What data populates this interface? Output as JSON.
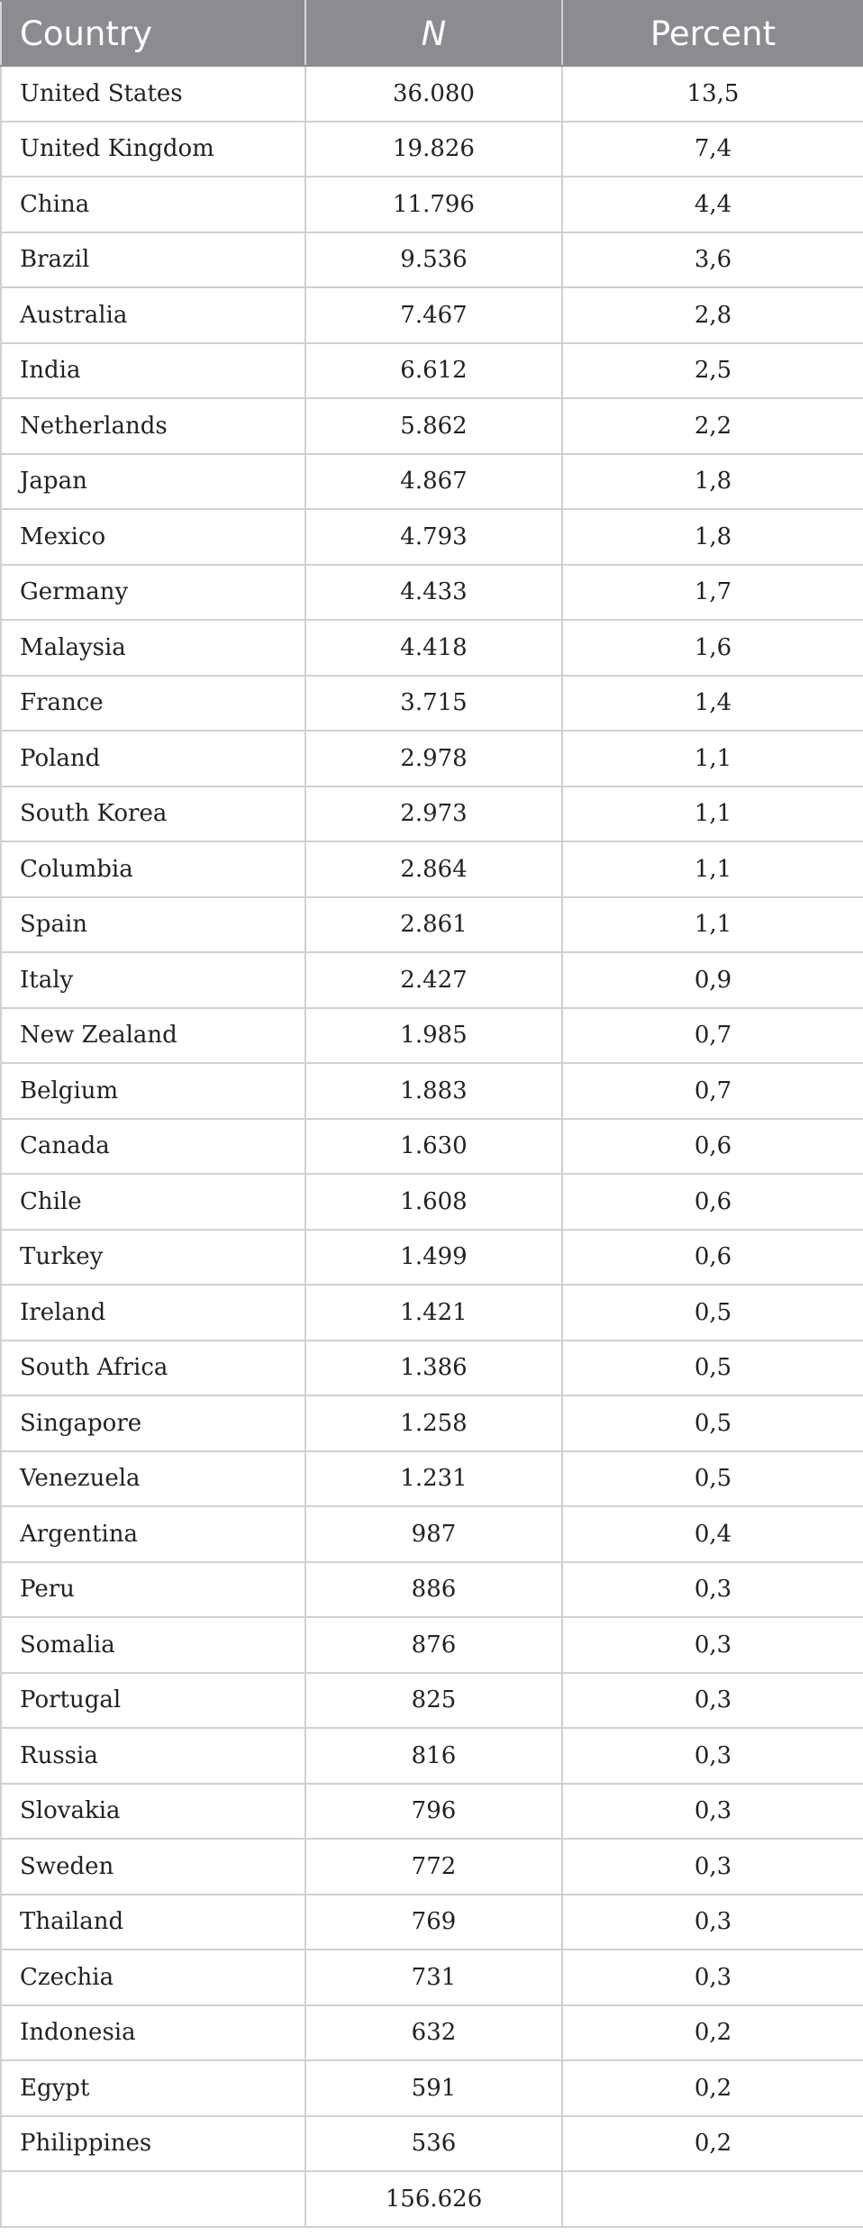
{
  "header": {
    "country": "Country",
    "n": "N",
    "percent": "Percent"
  },
  "rows": [
    {
      "country": "United States",
      "n": "36.080",
      "percent": "13,5"
    },
    {
      "country": "United Kingdom",
      "n": "19.826",
      "percent": "7,4"
    },
    {
      "country": "China",
      "n": "11.796",
      "percent": "4,4"
    },
    {
      "country": "Brazil",
      "n": "9.536",
      "percent": "3,6"
    },
    {
      "country": "Australia",
      "n": "7.467",
      "percent": "2,8"
    },
    {
      "country": "India",
      "n": "6.612",
      "percent": "2,5"
    },
    {
      "country": "Netherlands",
      "n": "5.862",
      "percent": "2,2"
    },
    {
      "country": "Japan",
      "n": "4.867",
      "percent": "1,8"
    },
    {
      "country": "Mexico",
      "n": "4.793",
      "percent": "1,8"
    },
    {
      "country": "Germany",
      "n": "4.433",
      "percent": "1,7"
    },
    {
      "country": "Malaysia",
      "n": "4.418",
      "percent": "1,6"
    },
    {
      "country": "France",
      "n": "3.715",
      "percent": "1,4"
    },
    {
      "country": "Poland",
      "n": "2.978",
      "percent": "1,1"
    },
    {
      "country": "South Korea",
      "n": "2.973",
      "percent": "1,1"
    },
    {
      "country": "Columbia",
      "n": "2.864",
      "percent": "1,1"
    },
    {
      "country": "Spain",
      "n": "2.861",
      "percent": "1,1"
    },
    {
      "country": "Italy",
      "n": "2.427",
      "percent": "0,9"
    },
    {
      "country": "New Zealand",
      "n": "1.985",
      "percent": "0,7"
    },
    {
      "country": "Belgium",
      "n": "1.883",
      "percent": "0,7"
    },
    {
      "country": "Canada",
      "n": "1.630",
      "percent": "0,6"
    },
    {
      "country": "Chile",
      "n": "1.608",
      "percent": "0,6"
    },
    {
      "country": "Turkey",
      "n": "1.499",
      "percent": "0,6"
    },
    {
      "country": "Ireland",
      "n": "1.421",
      "percent": "0,5"
    },
    {
      "country": "South Africa",
      "n": "1.386",
      "percent": "0,5"
    },
    {
      "country": "Singapore",
      "n": "1.258",
      "percent": "0,5"
    },
    {
      "country": "Venezuela",
      "n": "1.231",
      "percent": "0,5"
    },
    {
      "country": "Argentina",
      "n": "987",
      "percent": "0,4"
    },
    {
      "country": "Peru",
      "n": "886",
      "percent": "0,3"
    },
    {
      "country": "Somalia",
      "n": "876",
      "percent": "0,3"
    },
    {
      "country": "Portugal",
      "n": "825",
      "percent": "0,3"
    },
    {
      "country": "Russia",
      "n": "816",
      "percent": "0,3"
    },
    {
      "country": "Slovakia",
      "n": "796",
      "percent": "0,3"
    },
    {
      "country": "Sweden",
      "n": "772",
      "percent": "0,3"
    },
    {
      "country": "Thailand",
      "n": "769",
      "percent": "0,3"
    },
    {
      "country": "Czechia",
      "n": "731",
      "percent": "0,3"
    },
    {
      "country": "Indonesia",
      "n": "632",
      "percent": "0,2"
    },
    {
      "country": "Egypt",
      "n": "591",
      "percent": "0,2"
    },
    {
      "country": "Philippines",
      "n": "536",
      "percent": "0,2"
    }
  ],
  "total": {
    "country": "",
    "n": "156.626",
    "percent": ""
  }
}
